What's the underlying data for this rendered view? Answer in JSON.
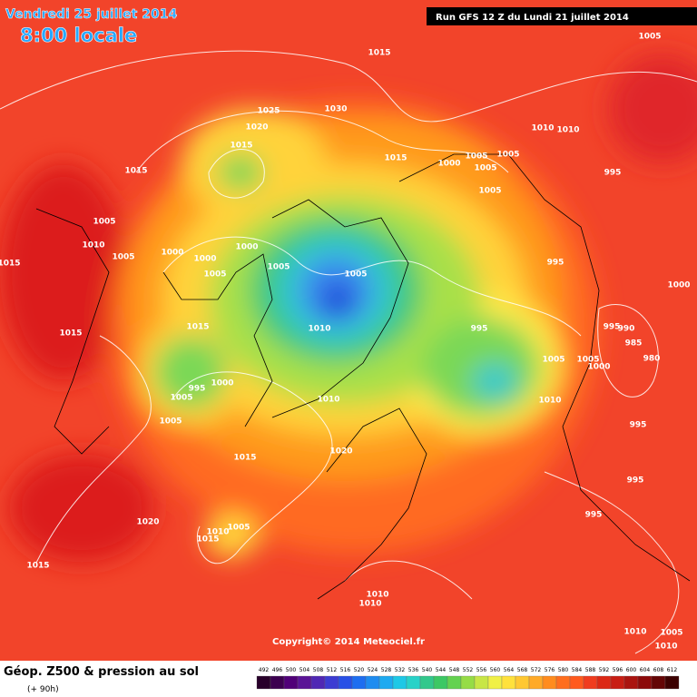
{
  "header": {
    "title": "Vendredi 25 juillet 2014",
    "time": "8:00 locale",
    "run": "Run GFS 12 Z du Lundi 21 juillet 2014"
  },
  "map": {
    "isobar_labels": [
      "1015",
      "1005",
      "1025",
      "1030",
      "1020",
      "1015",
      "1015",
      "1015",
      "1000",
      "1005",
      "1005",
      "1005",
      "1005",
      "1010",
      "1010",
      "995",
      "1005",
      "1010",
      "1005",
      "1000",
      "1000",
      "1000",
      "1005",
      "1005",
      "1005",
      "1015",
      "995",
      "1000",
      "1015",
      "1010",
      "1015",
      "995",
      "995",
      "990",
      "985",
      "980",
      "1005",
      "1000",
      "1005",
      "995",
      "1000",
      "1005",
      "1010",
      "1005",
      "1010",
      "995",
      "1020",
      "1015",
      "995",
      "995",
      "1020",
      "1010",
      "1005",
      "1015",
      "1015",
      "1010",
      "1010",
      "1010",
      "1005",
      "1010"
    ]
  },
  "copyright": "Copyright© 2014 Meteociel.fr",
  "legend": {
    "title": "Géop. Z500 & pression au sol",
    "lead": "(+ 90h)",
    "scale": [
      492,
      496,
      500,
      504,
      508,
      512,
      516,
      520,
      524,
      528,
      532,
      536,
      540,
      544,
      548,
      552,
      556,
      560,
      564,
      568,
      572,
      576,
      580,
      584,
      588,
      592,
      596,
      600,
      604,
      608,
      612
    ]
  }
}
